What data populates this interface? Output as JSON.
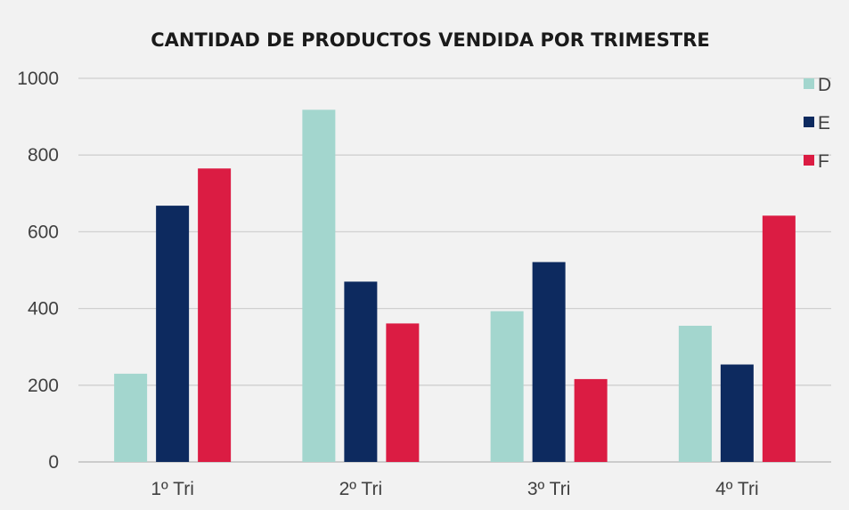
{
  "chart_data": {
    "type": "bar",
    "title": "CANTIDAD DE PRODUCTOS VENDIDA POR TRIMESTRE",
    "xlabel": "",
    "ylabel": "",
    "categories": [
      "1º Tri",
      "2º Tri",
      "3º Tri",
      "4º Tri"
    ],
    "series": [
      {
        "name": "D",
        "color": "#a3d6ce",
        "values": [
          230,
          918,
          393,
          355
        ]
      },
      {
        "name": "E",
        "color": "#0d2a5f",
        "values": [
          668,
          470,
          521,
          254
        ]
      },
      {
        "name": "F",
        "color": "#db1c43",
        "values": [
          765,
          361,
          216,
          642
        ]
      }
    ],
    "ylim": [
      0,
      1000
    ],
    "yticks": [
      0,
      200,
      400,
      600,
      800,
      1000
    ],
    "ytick_labels": [
      "0",
      "200",
      "400",
      "600",
      "800",
      "1000"
    ],
    "grid": true,
    "legend_position": "top-right"
  }
}
